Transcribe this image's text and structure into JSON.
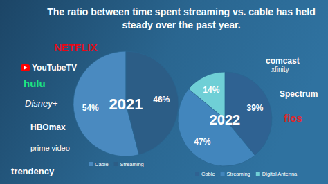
{
  "title": [
    "The ratio between time spent streaming vs. cable has held",
    "steady over the past year."
  ],
  "logos": {
    "left": [
      {
        "text": "NETFLIX",
        "color": "#e50914"
      },
      {
        "text": "YouTubeTV",
        "color": "#ffffff"
      },
      {
        "text": "hulu",
        "color": "#1ce783"
      },
      {
        "text": "Disney+",
        "color": "#ffffff"
      },
      {
        "text": "HBOmax",
        "color": "#ffffff"
      },
      {
        "text": "prime video",
        "color": "#ffffff"
      }
    ],
    "right": [
      {
        "text": "comcast",
        "color": "#ffffff"
      },
      {
        "text": "xfinity",
        "color": "#ffffff"
      },
      {
        "text": "Spectrum",
        "color": "#ffffff"
      },
      {
        "text": "fios",
        "color": "#e0262b"
      }
    ]
  },
  "brand": "trendency",
  "chart_data": [
    {
      "type": "pie",
      "title": "2021",
      "categories": [
        "Cable",
        "Streaming"
      ],
      "values": [
        54,
        46
      ],
      "value_labels": [
        "54%",
        "46%"
      ],
      "colors": [
        "#4a8ac0",
        "#2c5d86"
      ],
      "data_labels": true,
      "legend": "bottom"
    },
    {
      "type": "pie",
      "title": "2022",
      "categories": [
        "Cable",
        "Streaming",
        "Digital Antenna"
      ],
      "values": [
        39,
        47,
        14
      ],
      "value_labels": [
        "39%",
        "47%",
        "14%"
      ],
      "colors": [
        "#2f6292",
        "#4286bd",
        "#6fcfd6"
      ],
      "data_labels": true,
      "legend": "bottom"
    }
  ]
}
